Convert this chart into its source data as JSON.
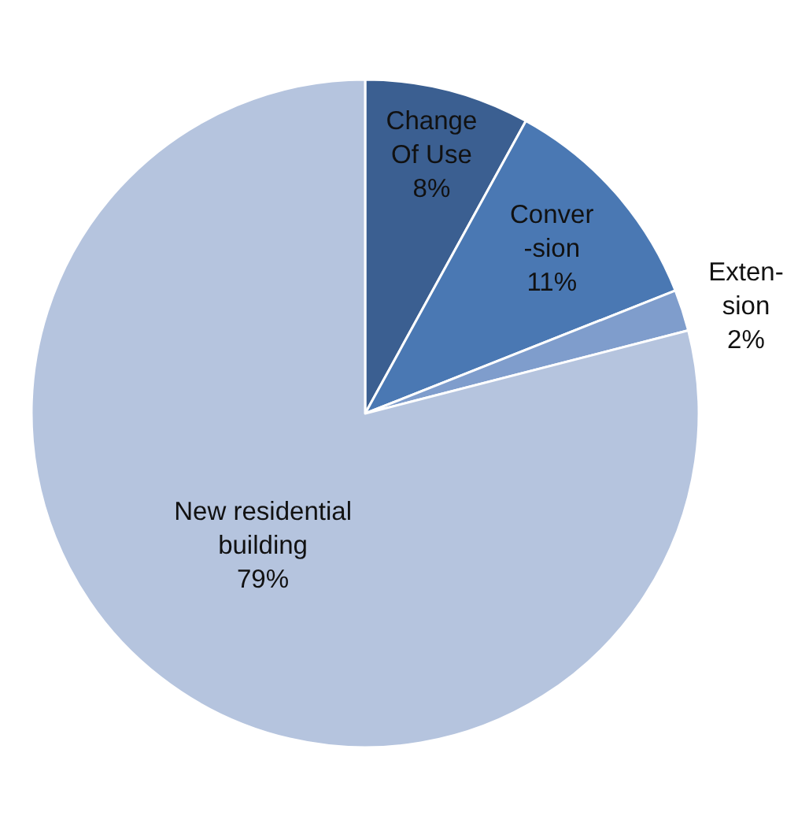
{
  "chart_data": {
    "type": "pie",
    "categories": [
      "Change\nOf Use",
      "Conver\n-sion",
      "Exten-\nsion",
      "New residential\nbuilding"
    ],
    "values": [
      8,
      11,
      2,
      79
    ],
    "value_labels": [
      "8%",
      "11%",
      "2%",
      "79%"
    ],
    "colors": [
      "#3b5f91",
      "#4a78b3",
      "#7f9dcc",
      "#b5c4de"
    ],
    "legend": false
  }
}
